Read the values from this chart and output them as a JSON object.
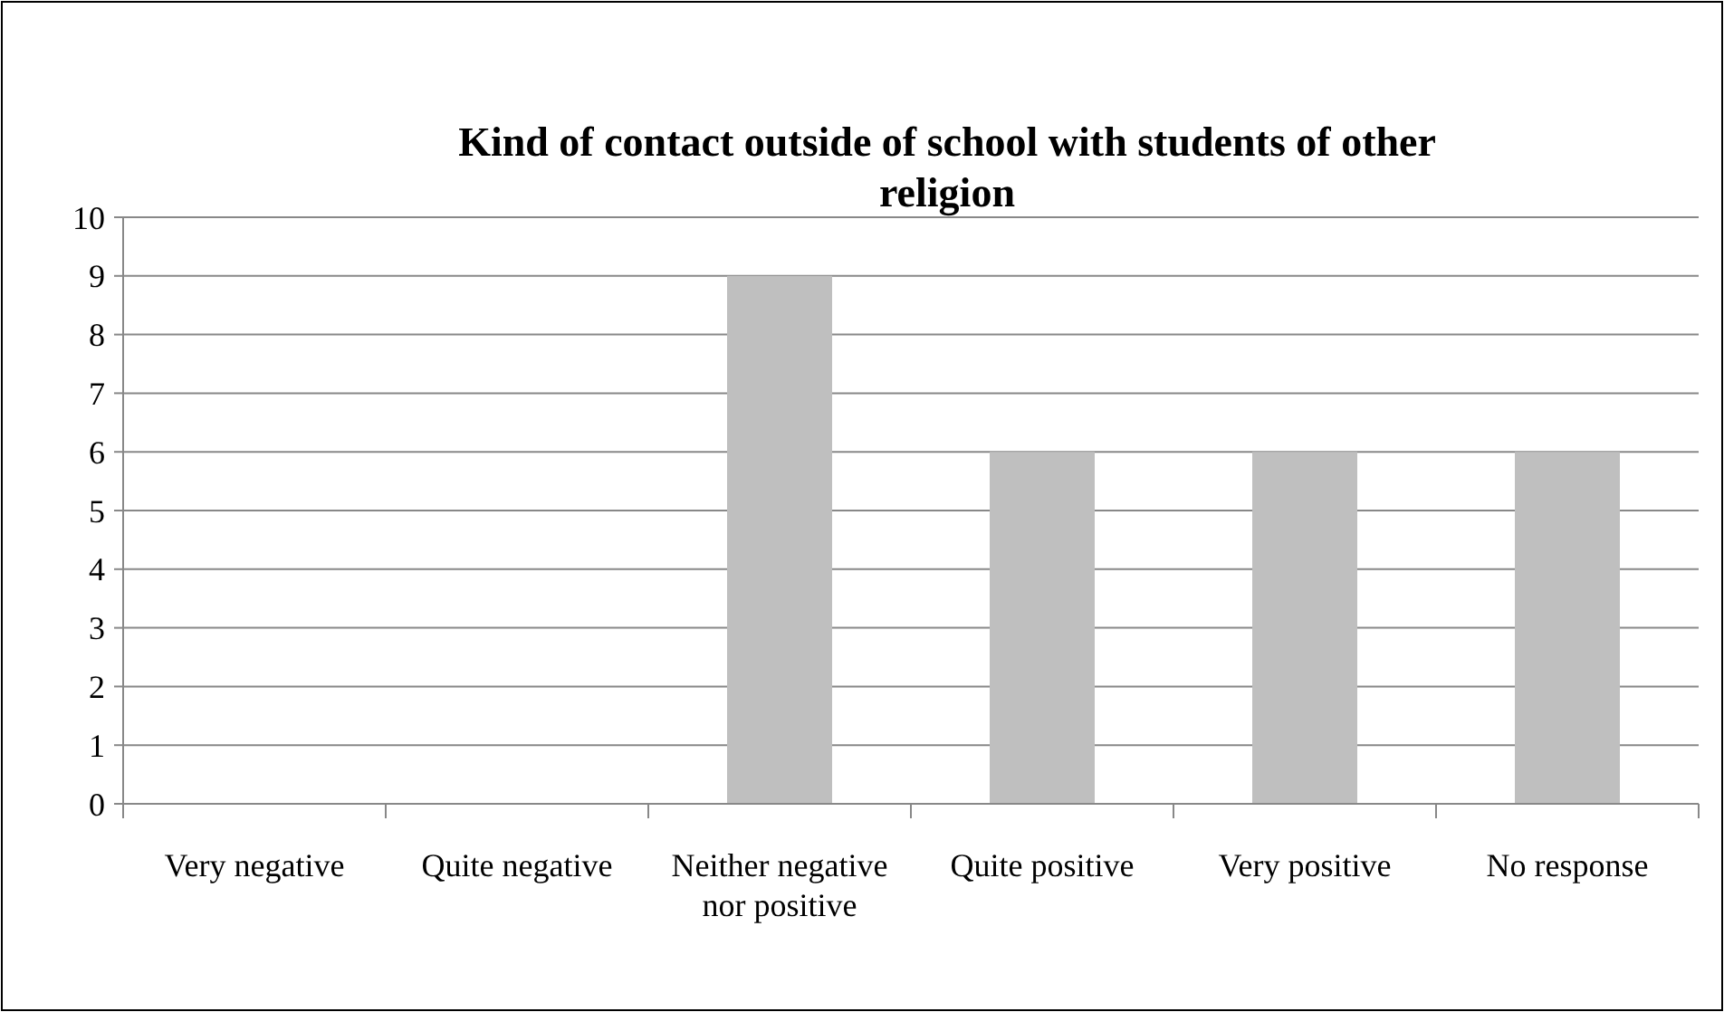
{
  "chart_data": {
    "type": "bar",
    "title": "Kind of contact outside of school with students of other religion",
    "categories": [
      "Very negative",
      "Quite negative",
      "Neither negative nor positive",
      "Quite positive",
      "Very positive",
      "No response"
    ],
    "values": [
      0,
      0,
      9,
      6,
      6,
      6
    ],
    "color": "#bfbfbf",
    "ylim": [
      0,
      10
    ],
    "yticks": [
      0,
      1,
      2,
      3,
      4,
      5,
      6,
      7,
      8,
      9,
      10
    ],
    "grid": "y"
  }
}
